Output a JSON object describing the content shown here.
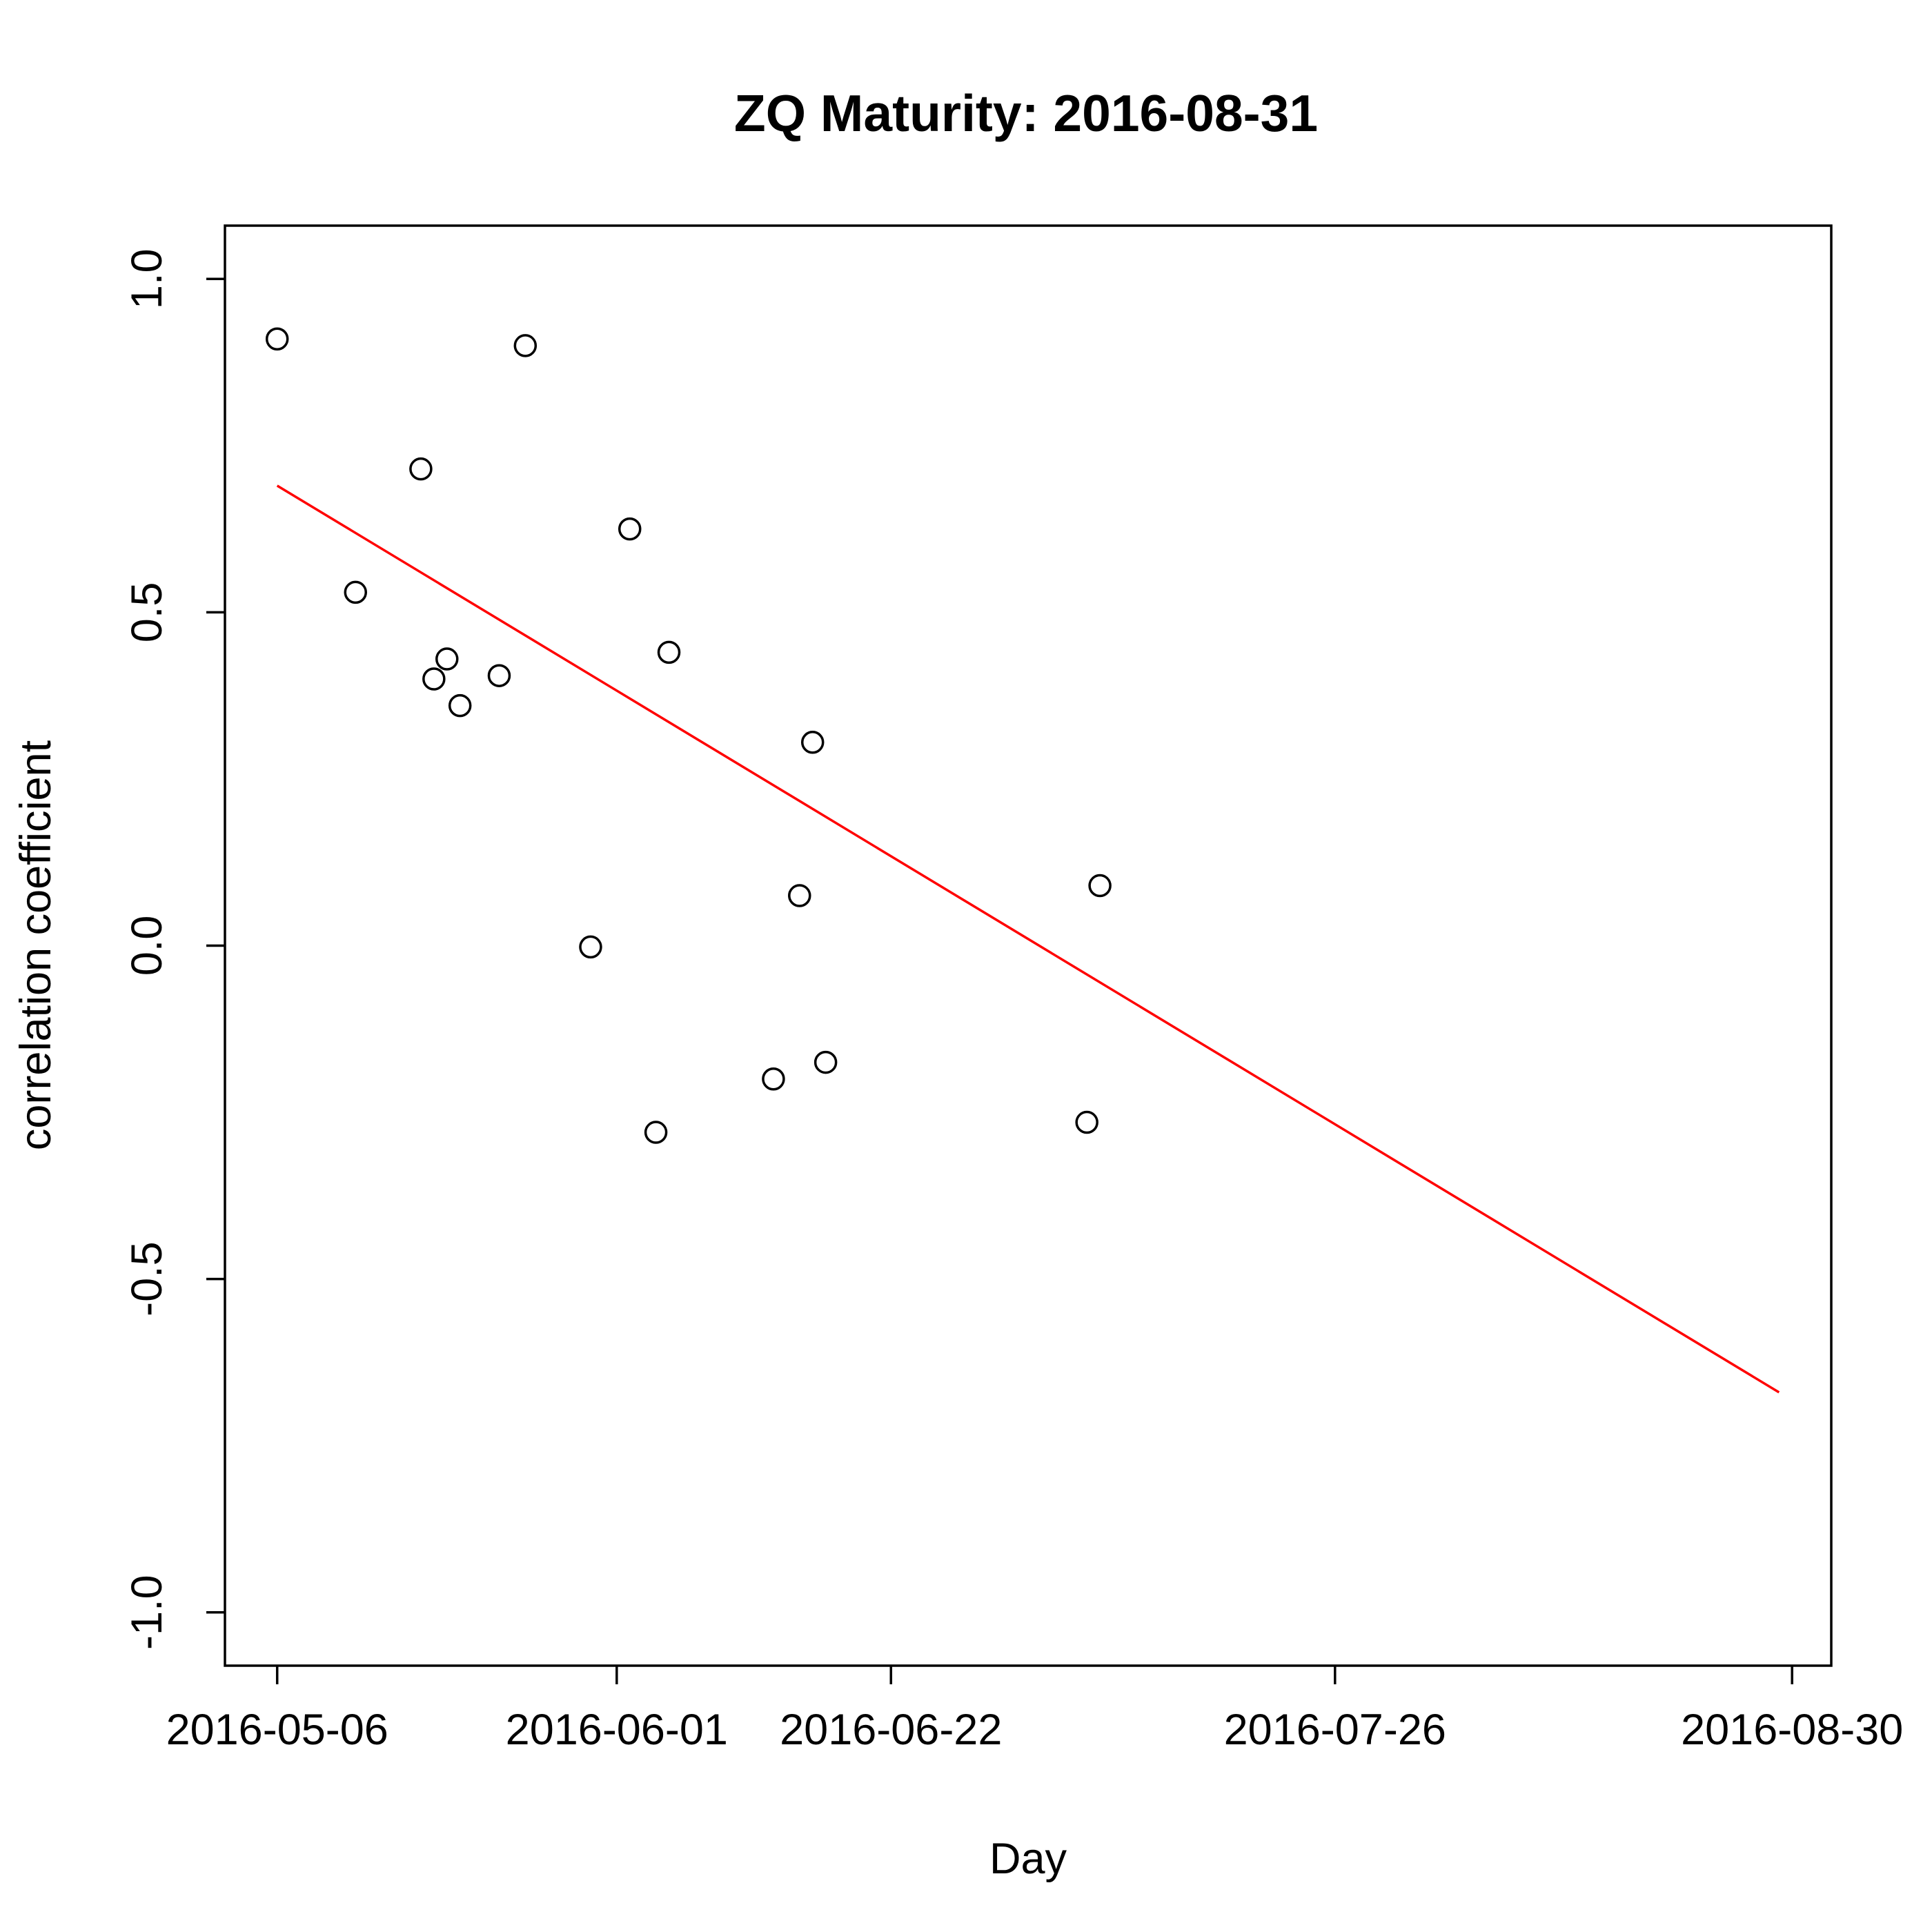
{
  "chart_data": {
    "type": "scatter",
    "title": "ZQ Maturity: 2016-08-31",
    "xlabel": "Day",
    "ylabel": "correlation coefficient",
    "xlim": [
      "2016-05-02",
      "2016-09-02"
    ],
    "ylim": [
      -1.08,
      1.08
    ],
    "x_ticks": [
      "2016-05-06",
      "2016-06-01",
      "2016-06-22",
      "2016-07-26",
      "2016-08-30"
    ],
    "y_ticks": [
      -1.0,
      -0.5,
      0.0,
      0.5,
      1.0
    ],
    "y_tick_labels": [
      "-1.0",
      "-0.5",
      "0.0",
      "0.5",
      "1.0"
    ],
    "grid": false,
    "series": [
      {
        "points": [
          {
            "x": "2016-05-06",
            "y": 0.91
          },
          {
            "x": "2016-05-12",
            "y": 0.53
          },
          {
            "x": "2016-05-17",
            "y": 0.715
          },
          {
            "x": "2016-05-18",
            "y": 0.4
          },
          {
            "x": "2016-05-19",
            "y": 0.43
          },
          {
            "x": "2016-05-20",
            "y": 0.36
          },
          {
            "x": "2016-05-23",
            "y": 0.405
          },
          {
            "x": "2016-05-25",
            "y": 0.9
          },
          {
            "x": "2016-05-30",
            "y": -0.002
          },
          {
            "x": "2016-06-02",
            "y": 0.625
          },
          {
            "x": "2016-06-04",
            "y": -0.28
          },
          {
            "x": "2016-06-05",
            "y": 0.44
          },
          {
            "x": "2016-06-13",
            "y": -0.2
          },
          {
            "x": "2016-06-15",
            "y": 0.075
          },
          {
            "x": "2016-06-16",
            "y": 0.305
          },
          {
            "x": "2016-06-17",
            "y": -0.175
          },
          {
            "x": "2016-07-07",
            "y": -0.265
          },
          {
            "x": "2016-07-08",
            "y": 0.09
          }
        ]
      }
    ],
    "fit_line": {
      "color": "#ff0000",
      "from": {
        "x": "2016-05-06",
        "y": 0.69
      },
      "to": {
        "x": "2016-08-29",
        "y": -0.67
      }
    }
  }
}
